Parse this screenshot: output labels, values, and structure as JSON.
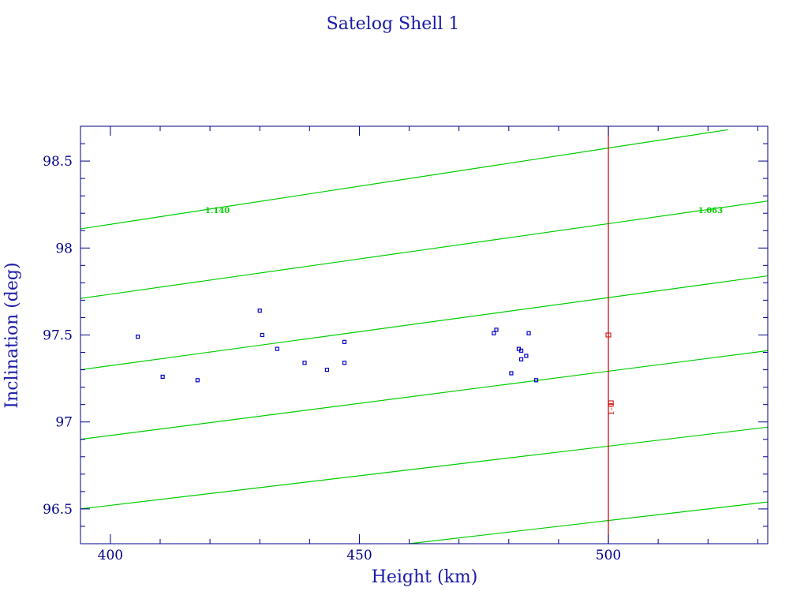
{
  "chart_data": {
    "type": "scatter",
    "title": "Satelog Shell 1",
    "xlabel": "Height (km)",
    "ylabel": "Inclination (deg)",
    "xlim": [
      394,
      532
    ],
    "ylim": [
      96.3,
      98.7
    ],
    "x_ticks": [
      400,
      450,
      500
    ],
    "y_ticks": [
      96.5,
      97,
      97.5,
      98,
      98.5
    ],
    "x_tick_labels": [
      "400",
      "450",
      "500"
    ],
    "y_tick_labels": [
      "96.5",
      "97",
      "97.5",
      "98",
      "98.5"
    ],
    "grid": false,
    "colors": {
      "frame": "#00008b",
      "points": "#0000cc",
      "contours": "#00cc00",
      "reference": "#cc0000",
      "title": "#1a1aa6"
    },
    "series": [
      {
        "points": [
          {
            "x": 405.5,
            "y": 97.49
          },
          {
            "x": 410.5,
            "y": 97.26
          },
          {
            "x": 417.5,
            "y": 97.24
          },
          {
            "x": 430.0,
            "y": 97.64
          },
          {
            "x": 430.5,
            "y": 97.5
          },
          {
            "x": 433.5,
            "y": 97.42
          },
          {
            "x": 439.0,
            "y": 97.34
          },
          {
            "x": 443.5,
            "y": 97.3
          },
          {
            "x": 447.0,
            "y": 97.46
          },
          {
            "x": 447.0,
            "y": 97.34
          },
          {
            "x": 477.0,
            "y": 97.51
          },
          {
            "x": 477.5,
            "y": 97.53
          },
          {
            "x": 480.5,
            "y": 97.28
          },
          {
            "x": 482.0,
            "y": 97.42
          },
          {
            "x": 482.5,
            "y": 97.41
          },
          {
            "x": 482.5,
            "y": 97.36
          },
          {
            "x": 483.5,
            "y": 97.38
          },
          {
            "x": 484.0,
            "y": 97.51
          },
          {
            "x": 485.5,
            "y": 97.24
          }
        ]
      }
    ],
    "contours": [
      {
        "x1": 394,
        "y1": 98.11,
        "x2": 524,
        "y2": 98.68,
        "label": "1.140",
        "label_x": 421.5,
        "label_y": 98.22
      },
      {
        "x1": 394,
        "y1": 97.71,
        "x2": 532,
        "y2": 98.27,
        "label": "1.063",
        "label_x": 520.5,
        "label_y": 98.22
      },
      {
        "x1": 394,
        "y1": 97.3,
        "x2": 532,
        "y2": 97.84
      },
      {
        "x1": 394,
        "y1": 96.9,
        "x2": 532,
        "y2": 97.41
      },
      {
        "x1": 394,
        "y1": 96.5,
        "x2": 532,
        "y2": 96.97
      },
      {
        "x1": 460,
        "y1": 96.3,
        "x2": 532,
        "y2": 96.54
      }
    ],
    "reference_line": {
      "x": 500
    },
    "reference_points": [
      {
        "x": 500,
        "y": 97.5,
        "label": ""
      },
      {
        "x": 500.5,
        "y": 97.11,
        "label": "1-0"
      }
    ]
  }
}
